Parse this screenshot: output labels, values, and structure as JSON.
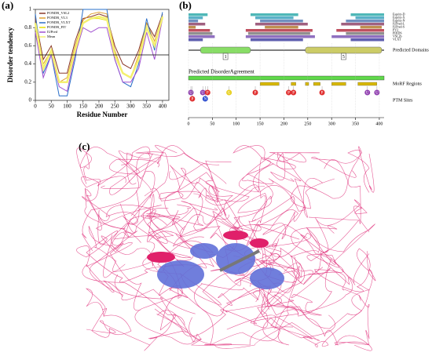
{
  "panel_labels": [
    "(a)",
    "(b)",
    "(c)"
  ],
  "chart_data": {
    "type": "line",
    "ylabel": "Disorder tendency",
    "xlabel": "Residue Number",
    "x": [
      0,
      25,
      50,
      75,
      100,
      125,
      150,
      175,
      200,
      225,
      250,
      275,
      300,
      325,
      350,
      375,
      400
    ],
    "series": [
      {
        "name": "PONDR_VSL2",
        "color": "#8b3a2b",
        "values": [
          0.9,
          0.45,
          0.6,
          0.3,
          0.3,
          0.65,
          0.9,
          0.92,
          0.95,
          0.92,
          0.6,
          0.4,
          0.35,
          0.55,
          0.85,
          0.7,
          0.95
        ]
      },
      {
        "name": "PONDR_VL3",
        "color": "#e0a030",
        "values": [
          0.85,
          0.4,
          0.55,
          0.2,
          0.25,
          0.6,
          0.88,
          0.95,
          0.97,
          0.95,
          0.55,
          0.3,
          0.25,
          0.5,
          0.85,
          0.65,
          0.93
        ]
      },
      {
        "name": "PONDR_VLXT",
        "color": "#2a6fc9",
        "values": [
          0.95,
          0.3,
          0.5,
          0.05,
          0.05,
          0.45,
          1.0,
          1.0,
          1.0,
          1.0,
          0.45,
          0.2,
          0.15,
          0.4,
          0.9,
          0.55,
          0.97
        ]
      },
      {
        "name": "PONDR_FIT",
        "color": "#e8e000",
        "values": [
          0.8,
          0.35,
          0.55,
          0.2,
          0.2,
          0.55,
          0.85,
          0.9,
          0.9,
          0.88,
          0.5,
          0.3,
          0.25,
          0.45,
          0.8,
          0.6,
          0.9
        ]
      },
      {
        "name": "IUPred",
        "color": "#a050d0",
        "values": [
          0.75,
          0.25,
          0.5,
          0.15,
          0.1,
          0.5,
          0.8,
          0.75,
          0.8,
          0.8,
          0.45,
          0.2,
          0.2,
          0.35,
          0.75,
          0.45,
          0.9
        ]
      },
      {
        "name": "Mean",
        "color": "#f4f070",
        "values": [
          0.85,
          0.35,
          0.55,
          0.2,
          0.2,
          0.55,
          0.85,
          0.9,
          0.92,
          0.9,
          0.5,
          0.3,
          0.25,
          0.45,
          0.8,
          0.6,
          0.92
        ]
      }
    ],
    "threshold": 0.5,
    "xlim": [
      0,
      420
    ],
    "xticks": [
      0,
      50,
      100,
      150,
      200,
      250,
      300,
      350,
      400
    ],
    "ylim": [
      0,
      1
    ],
    "yticks": [
      0,
      0.2,
      0.4,
      0.6,
      0.8,
      1
    ],
    "legend": "upper left"
  },
  "domain_map": {
    "xlim": [
      0,
      410
    ],
    "xticks": [
      0,
      50,
      100,
      150,
      200,
      250,
      300,
      350,
      400
    ],
    "predictors": [
      {
        "name": "Espritz-D",
        "color": "#4fb8b8",
        "regions": [
          [
            0,
            40
          ],
          [
            130,
            230
          ],
          [
            340,
            410
          ]
        ]
      },
      {
        "name": "Espritz-X",
        "color": "#5ab0c8",
        "regions": [
          [
            0,
            30
          ],
          [
            140,
            220
          ],
          [
            350,
            410
          ]
        ]
      },
      {
        "name": "Espritz-N",
        "color": "#7090c0",
        "regions": [
          [
            0,
            20
          ],
          [
            150,
            240
          ],
          [
            330,
            410
          ]
        ]
      },
      {
        "name": "IUPred-L",
        "color": "#a06080",
        "regions": [
          [
            0,
            35
          ],
          [
            140,
            250
          ],
          [
            320,
            410
          ]
        ]
      },
      {
        "name": "IUPred-S",
        "color": "#c09050",
        "regions": [
          [
            0,
            15
          ],
          [
            160,
            230
          ],
          [
            360,
            405
          ]
        ]
      },
      {
        "name": "PV2",
        "color": "#c05060",
        "regions": [
          [
            0,
            45
          ],
          [
            120,
            260
          ],
          [
            310,
            410
          ]
        ]
      },
      {
        "name": "PDIDS",
        "color": "#909090",
        "regions": [
          [
            0,
            50
          ],
          [
            125,
            255
          ],
          [
            330,
            410
          ]
        ]
      },
      {
        "name": "VSL2b",
        "color": "#9070c0",
        "regions": [
          [
            0,
            55
          ],
          [
            120,
            265
          ],
          [
            300,
            410
          ]
        ]
      },
      {
        "name": "VLXT",
        "color": "#6060b0",
        "regions": [
          [
            0,
            30
          ],
          [
            130,
            240
          ],
          [
            340,
            410
          ]
        ]
      }
    ],
    "domains_label": "Predicted Domains",
    "domains": [
      {
        "label": "1",
        "start": 25,
        "end": 130,
        "color": "#88dd66"
      },
      {
        "label": "5",
        "start": 245,
        "end": 405,
        "color": "#cccc66"
      }
    ],
    "agreement_label": "Predicted DisorderAgreement",
    "morf_label": "MoRF Regions",
    "morfs": [
      [
        150,
        190
      ],
      [
        215,
        225
      ],
      [
        245,
        252
      ],
      [
        262,
        276
      ],
      [
        300,
        330
      ],
      [
        355,
        395
      ]
    ],
    "ptm_label": "PTM Sites",
    "ptms": [
      {
        "label": "U",
        "pos": 5,
        "color": "#9040b0"
      },
      {
        "label": "P",
        "pos": 8,
        "color": "#e03030"
      },
      {
        "label": "U",
        "pos": 30,
        "color": "#9040b0"
      },
      {
        "label": "N",
        "pos": 35,
        "color": "#3050d0"
      },
      {
        "label": "P",
        "pos": 40,
        "color": "#e03030"
      },
      {
        "label": "G",
        "pos": 85,
        "color": "#e8d020"
      },
      {
        "label": "P",
        "pos": 140,
        "color": "#e03030"
      },
      {
        "label": "P",
        "pos": 210,
        "color": "#e03030"
      },
      {
        "label": "P",
        "pos": 220,
        "color": "#e03030"
      },
      {
        "label": "P",
        "pos": 280,
        "color": "#e03030"
      },
      {
        "label": "U",
        "pos": 375,
        "color": "#9040b0"
      },
      {
        "label": "U",
        "pos": 395,
        "color": "#9040b0"
      }
    ]
  }
}
